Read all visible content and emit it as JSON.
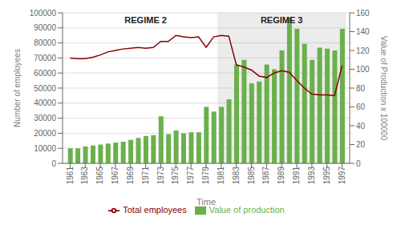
{
  "chart_data": {
    "type": "combo",
    "x_label": "Time",
    "y_label": "Number of employees",
    "y2_label": "Value of Production  x 100000",
    "x": [
      1961,
      1962,
      1963,
      1964,
      1965,
      1966,
      1967,
      1968,
      1969,
      1970,
      1971,
      1972,
      1973,
      1974,
      1975,
      1976,
      1977,
      1978,
      1979,
      1980,
      1981,
      1982,
      1983,
      1984,
      1985,
      1986,
      1987,
      1988,
      1989,
      1990,
      1991,
      1992,
      1993,
      1994,
      1995,
      1996,
      1997
    ],
    "series": [
      {
        "name": "Value of production",
        "type": "bar",
        "color": "#6ab04c",
        "axis": "y2",
        "values": [
          16,
          16,
          18,
          19,
          20,
          21,
          22,
          23,
          25,
          27,
          29,
          30,
          50,
          31,
          35,
          32,
          33,
          33,
          60,
          55,
          60,
          68,
          105,
          110,
          85,
          87,
          105,
          100,
          120,
          155,
          143,
          127,
          110,
          123,
          122,
          120,
          143
        ]
      },
      {
        "name": "Total employees",
        "type": "line",
        "color": "#8B0000",
        "values": [
          70000,
          69500,
          69500,
          70500,
          72000,
          74000,
          75000,
          76000,
          76500,
          77000,
          76500,
          77000,
          81000,
          81000,
          85000,
          84000,
          83500,
          84000,
          77000,
          84000,
          85000,
          84500,
          65500,
          64000,
          62000,
          58000,
          57000,
          60000,
          61500,
          60500,
          55000,
          50000,
          46000,
          45500,
          45500,
          45000,
          65000
        ]
      }
    ],
    "xlim": [
      1960,
      1998
    ],
    "xticks": [
      1961,
      1963,
      1965,
      1967,
      1969,
      1971,
      1973,
      1975,
      1977,
      1979,
      1981,
      1983,
      1985,
      1987,
      1989,
      1991,
      1993,
      1995,
      1997
    ],
    "ylim": [
      0,
      100000
    ],
    "yticks": [
      0,
      10000,
      20000,
      30000,
      40000,
      50000,
      60000,
      70000,
      80000,
      90000,
      100000
    ],
    "y2lim": [
      0,
      160
    ],
    "y2ticks": [
      0,
      20,
      40,
      60,
      80,
      100,
      120,
      140,
      160
    ],
    "grid": true,
    "legend": "bottom",
    "annotations": [
      {
        "text": "REGIME 2",
        "x": [
          1961,
          1981
        ]
      },
      {
        "text": "REGIME 3",
        "x": [
          1981,
          1997
        ],
        "color": "#808080"
      }
    ]
  }
}
